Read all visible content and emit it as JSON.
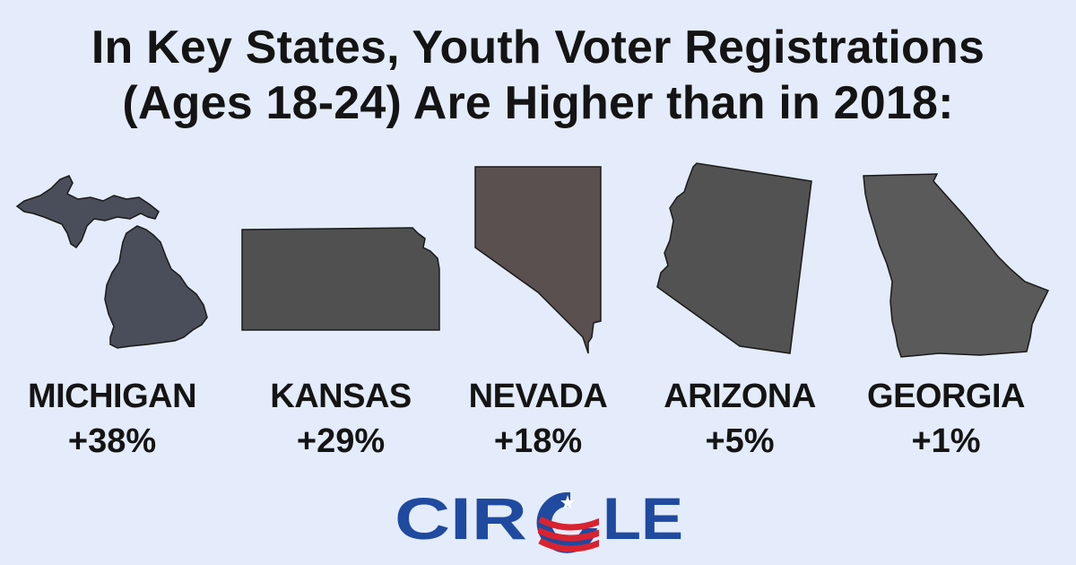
{
  "title": {
    "line1": "In Key States, Youth Voter Registrations",
    "line2": "(Ages 18-24) Are Higher than in 2018:"
  },
  "states": [
    {
      "name": "MICHIGAN",
      "change": "+38%",
      "icon": "michigan-shape",
      "color": "#4a4e5a"
    },
    {
      "name": "KANSAS",
      "change": "+29%",
      "icon": "kansas-shape",
      "color": "#505050"
    },
    {
      "name": "NEVADA",
      "change": "+18%",
      "icon": "nevada-shape",
      "color": "#5a5050"
    },
    {
      "name": "ARIZONA",
      "change": "+5%",
      "icon": "arizona-shape",
      "color": "#525252"
    },
    {
      "name": "GEORGIA",
      "change": "+1%",
      "icon": "georgia-shape",
      "color": "#5a5a5a"
    }
  ],
  "logo": {
    "text": "CIRCLE",
    "blue": "#1f4aa0",
    "red": "#d9232f"
  },
  "colors": {
    "background": "#e4ecfb",
    "text": "#141414"
  }
}
